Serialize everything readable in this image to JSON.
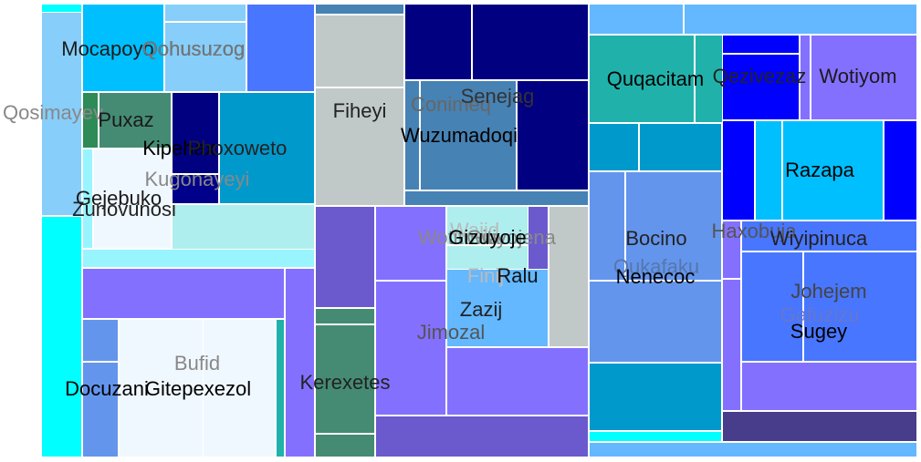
{
  "chart_data": {
    "type": "treemap",
    "title": "",
    "tiles": [
      {
        "group": "Mocapoyo",
        "value": 1.5,
        "color": "#00bfff"
      },
      {
        "group": "Qohusuzog",
        "value": 1.2,
        "color": "#87cefa"
      },
      {
        "group": "Qosimayev",
        "value": 2.1,
        "color": "#87cefa"
      },
      {
        "group": "Zunovunosi",
        "value": 3.3,
        "color": "#00ffff"
      },
      {
        "group": "Puxaz",
        "value": 0.6,
        "color": "#2e8b57"
      },
      {
        "group": "Kipehax",
        "value": 0.5,
        "color": "#000080"
      },
      {
        "group": "Phoxoweto",
        "value": 1.0,
        "color": "#0099cc"
      },
      {
        "group": "Kugonayeyi",
        "value": 1.6,
        "color": "#afeeee"
      },
      {
        "group": "Gejebuko",
        "value": 0.8,
        "color": "#f0f8ff"
      },
      {
        "group": "Docuzani",
        "value": 0.5,
        "color": "#6495ed"
      },
      {
        "group": "Bufid",
        "value": 2.6,
        "color": "#8470ff"
      },
      {
        "group": "Gitepexezol",
        "value": 1.1,
        "color": "#f0f8ff"
      },
      {
        "group": "Fiheyi",
        "value": 1.6,
        "color": "#c0c8c8"
      },
      {
        "group": "Conimeq",
        "value": 1.2,
        "color": "#4682b4"
      },
      {
        "group": "Senejag",
        "value": 1.8,
        "color": "#000080"
      },
      {
        "group": "Wuzumadoqi",
        "value": 0.9,
        "color": "#000080"
      },
      {
        "group": "Kerexetes",
        "value": 1.6,
        "color": "#3cb371"
      },
      {
        "group": "Jimozal",
        "value": 2.2,
        "color": "#8470ff"
      },
      {
        "group": "Gitiyojena",
        "value": 0.9,
        "color": "#c0c8c8"
      },
      {
        "group": "Gizuyoje",
        "value": 0.3,
        "color": "#afeeee"
      },
      {
        "group": "Ralu",
        "value": 0.4,
        "color": "#6a5acd"
      },
      {
        "group": "Zazij",
        "value": 0.7,
        "color": "#6495ed"
      },
      {
        "group": "Quqacitam",
        "value": 0.9,
        "color": "#20b2aa"
      },
      {
        "group": "Bocino",
        "value": 1.6,
        "color": "#6495ed"
      },
      {
        "group": "Qukafaku",
        "value": 0.6,
        "color": "#0099cc"
      },
      {
        "group": "Nenecoc",
        "value": 1.7,
        "color": "#6495ed"
      },
      {
        "group": "Qezivezaz",
        "value": 0.6,
        "color": "#0000ff"
      },
      {
        "group": "Wotiyom",
        "value": 0.9,
        "color": "#8470ff"
      },
      {
        "group": "Razapa",
        "value": 1.4,
        "color": "#00bfff"
      },
      {
        "group": "Haxobuja",
        "value": 0.4,
        "color": "#8470ff"
      },
      {
        "group": "Wiyipinuca",
        "value": 0.8,
        "color": "#4876ff"
      },
      {
        "group": "Johejem",
        "value": 0.9,
        "color": "#4876ff"
      },
      {
        "group": "Gafuzizu",
        "value": 0.6,
        "color": "#8470ff"
      },
      {
        "group": "Sugey",
        "value": 0.5,
        "color": "#4876ff"
      }
    ],
    "labels": [
      {
        "text": "Mocapoyo",
        "color": "#1a1a1a"
      },
      {
        "text": "Qohusuzog",
        "color": "#222222"
      },
      {
        "text": "Qohusuzog",
        "color": "#777777"
      },
      {
        "text": "Qosimayev",
        "color": "#888888"
      },
      {
        "text": "Puxaz",
        "color": "#1a1a1a"
      },
      {
        "text": "Kipehax",
        "color": "#000000"
      },
      {
        "text": "Phoxoweto",
        "color": "#222222"
      },
      {
        "text": "Kugonayeyi",
        "color": "#888888"
      },
      {
        "text": "Gejebuko",
        "color": "#1a1a1a"
      },
      {
        "text": "Zunovunosi",
        "color": "#222222"
      },
      {
        "text": "Bufid",
        "color": "#888888"
      },
      {
        "text": "Docuzani",
        "color": "#000000"
      },
      {
        "text": "Gitepexezol",
        "color": "#000000"
      },
      {
        "text": "Fiheyi",
        "color": "#222222"
      },
      {
        "text": "Conimeq",
        "color": "#666666"
      },
      {
        "text": "Senejag",
        "color": "#333333"
      },
      {
        "text": "Wuzumadoqi",
        "color": "#000000"
      },
      {
        "text": "Kerexetes",
        "color": "#222222"
      },
      {
        "text": "Jimozal",
        "color": "#555555"
      },
      {
        "text": "Wajid",
        "color": "#bbbbbb"
      },
      {
        "text": "Wotituwa",
        "color": "#888888"
      },
      {
        "text": "Gitiyojena",
        "color": "#888888"
      },
      {
        "text": "Gizuyoje",
        "color": "#000000"
      },
      {
        "text": "Finij",
        "color": "#bbbbbb"
      },
      {
        "text": "Ralu",
        "color": "#111111"
      },
      {
        "text": "Zazij",
        "color": "#222222"
      },
      {
        "text": "Quqacitam",
        "color": "#000000"
      },
      {
        "text": "Qezivezaz",
        "color": "#222222"
      },
      {
        "text": "Wotiyom",
        "color": "#1a1a1a"
      },
      {
        "text": "Razapa",
        "color": "#000000"
      },
      {
        "text": "Bocino",
        "color": "#222222"
      },
      {
        "text": "Haxobuja",
        "color": "#555555"
      },
      {
        "text": "Wiyipinuca",
        "color": "#222222"
      },
      {
        "text": "Qukafaku",
        "color": "#5577aa"
      },
      {
        "text": "Nenecoc",
        "color": "#000000"
      },
      {
        "text": "Johejem",
        "color": "#444444"
      },
      {
        "text": "Gafuzizu",
        "color": "#6677cc"
      },
      {
        "text": "Sugey",
        "color": "#000000"
      }
    ]
  }
}
